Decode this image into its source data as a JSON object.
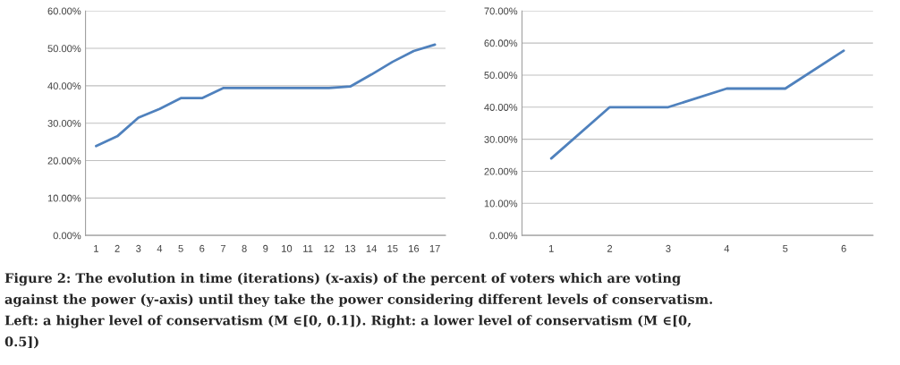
{
  "chart_data": [
    {
      "type": "line",
      "categories": [
        "1",
        "2",
        "3",
        "4",
        "5",
        "6",
        "7",
        "8",
        "9",
        "10",
        "11",
        "12",
        "13",
        "14",
        "15",
        "16",
        "17"
      ],
      "series": [
        {
          "color": "#4f81bd",
          "values": [
            23.9,
            26.5,
            31.5,
            33.8,
            36.7,
            36.7,
            39.4,
            39.4,
            39.4,
            39.4,
            39.4,
            39.4,
            39.8,
            43.0,
            46.4,
            49.3,
            51.0
          ]
        }
      ],
      "ylim": [
        0,
        60
      ],
      "yticks": [
        {
          "value": 0,
          "label": "0.00%"
        },
        {
          "value": 10,
          "label": "10.00%"
        },
        {
          "value": 20,
          "label": "20.00%"
        },
        {
          "value": 30,
          "label": "30.00%"
        },
        {
          "value": 40,
          "label": "40.00%"
        },
        {
          "value": 50,
          "label": "50.00%"
        },
        {
          "value": 60,
          "label": "60.00%"
        }
      ],
      "grid": "y",
      "annotations": [
        "Figure 2: The evolution in time (iterations) (x-axis) of the percent of voters which are voting",
        "against the power (y-axis) until they take the power considering different levels of conservatism.",
        "Left: a higher level of conservatism (M ∈[0, 0.1]). Right: a lower level of conservatism (M ∈[0,",
        "0.5])"
      ]
    },
    {
      "type": "line",
      "categories": [
        "1",
        "2",
        "3",
        "4",
        "5",
        "6"
      ],
      "series": [
        {
          "color": "#4f81bd",
          "values": [
            24.0,
            40.0,
            40.0,
            45.8,
            45.8,
            57.6
          ]
        }
      ],
      "ylim": [
        0,
        70
      ],
      "yticks": [
        {
          "value": 0,
          "label": "0.00%"
        },
        {
          "value": 10,
          "label": "10.00%"
        },
        {
          "value": 20,
          "label": "20.00%"
        },
        {
          "value": 30,
          "label": "30.00%"
        },
        {
          "value": 40,
          "label": "40.00%"
        },
        {
          "value": 50,
          "label": "50.00%"
        },
        {
          "value": 60,
          "label": "60.00%"
        },
        {
          "value": 70,
          "label": "70.00%"
        }
      ],
      "grid": "y"
    }
  ]
}
